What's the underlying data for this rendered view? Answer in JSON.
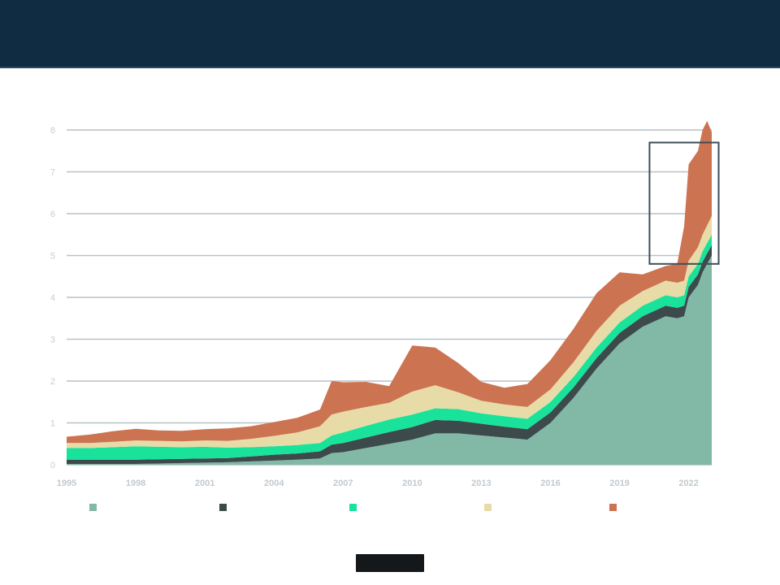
{
  "slide": {
    "title": "",
    "subtitle": ""
  },
  "colors": {
    "header": "#102c42",
    "grid": "#b9c1c7",
    "highlight_box": "#3d4e58"
  },
  "chart_data": {
    "type": "area",
    "stacked": true,
    "title": "",
    "xlabel": "",
    "ylabel": "",
    "xlim": [
      1995,
      2023
    ],
    "ylim": [
      0,
      8
    ],
    "yticks": [
      0,
      1,
      2,
      3,
      4,
      5,
      6,
      7,
      8
    ],
    "xticks": [
      1995,
      1998,
      2001,
      2004,
      2007,
      2010,
      2013,
      2016,
      2019,
      2022
    ],
    "grid": true,
    "legend_position": "bottom",
    "annotation": {
      "text": "",
      "box_x": [
        2020.3,
        2023.3
      ],
      "box_y": [
        4.8,
        7.7
      ]
    },
    "x": [
      1995,
      1996,
      1997,
      1998,
      1999,
      2000,
      2001,
      2002,
      2003,
      2004,
      2005,
      2006,
      2006.5,
      2007,
      2008,
      2009,
      2010,
      2011,
      2012,
      2013,
      2014,
      2015,
      2016,
      2017,
      2018,
      2019,
      2020,
      2021,
      2021.5,
      2021.8,
      2022,
      2022.4,
      2022.6,
      2022.8,
      2023
    ],
    "series": [
      {
        "name": "",
        "color": "#82b8a6",
        "values": [
          0.02,
          0.02,
          0.02,
          0.02,
          0.03,
          0.04,
          0.05,
          0.06,
          0.08,
          0.1,
          0.12,
          0.15,
          0.28,
          0.3,
          0.4,
          0.5,
          0.6,
          0.75,
          0.75,
          0.7,
          0.65,
          0.6,
          1.0,
          1.6,
          2.3,
          2.9,
          3.3,
          3.55,
          3.5,
          3.55,
          4.0,
          4.3,
          4.6,
          4.8,
          5.0
        ]
      },
      {
        "name": "",
        "color": "#3d4a4c",
        "values": [
          0.1,
          0.1,
          0.1,
          0.1,
          0.1,
          0.1,
          0.1,
          0.1,
          0.12,
          0.14,
          0.15,
          0.17,
          0.2,
          0.22,
          0.25,
          0.28,
          0.3,
          0.32,
          0.3,
          0.28,
          0.26,
          0.25,
          0.25,
          0.25,
          0.25,
          0.25,
          0.25,
          0.25,
          0.25,
          0.25,
          0.25,
          0.25,
          0.25,
          0.25,
          0.25
        ]
      },
      {
        "name": "",
        "color": "#19e29a",
        "values": [
          0.28,
          0.28,
          0.3,
          0.32,
          0.3,
          0.28,
          0.28,
          0.25,
          0.22,
          0.2,
          0.2,
          0.2,
          0.22,
          0.25,
          0.28,
          0.3,
          0.3,
          0.28,
          0.28,
          0.25,
          0.25,
          0.25,
          0.25,
          0.25,
          0.25,
          0.25,
          0.25,
          0.25,
          0.25,
          0.25,
          0.25,
          0.25,
          0.25,
          0.25,
          0.25
        ]
      },
      {
        "name": "",
        "color": "#e7dca7",
        "values": [
          0.12,
          0.12,
          0.13,
          0.14,
          0.14,
          0.14,
          0.15,
          0.16,
          0.2,
          0.25,
          0.3,
          0.4,
          0.5,
          0.5,
          0.45,
          0.4,
          0.55,
          0.55,
          0.4,
          0.3,
          0.28,
          0.28,
          0.3,
          0.35,
          0.4,
          0.4,
          0.35,
          0.35,
          0.35,
          0.35,
          0.38,
          0.4,
          0.4,
          0.42,
          0.45
        ]
      },
      {
        "name": "",
        "color": "#cc7352",
        "values": [
          0.15,
          0.2,
          0.25,
          0.28,
          0.25,
          0.25,
          0.27,
          0.3,
          0.3,
          0.33,
          0.35,
          0.4,
          0.8,
          0.7,
          0.6,
          0.4,
          1.1,
          0.9,
          0.7,
          0.45,
          0.4,
          0.55,
          0.7,
          0.8,
          0.9,
          0.8,
          0.4,
          0.35,
          0.45,
          1.3,
          2.3,
          2.3,
          2.5,
          2.5,
          2.0
        ]
      }
    ]
  }
}
